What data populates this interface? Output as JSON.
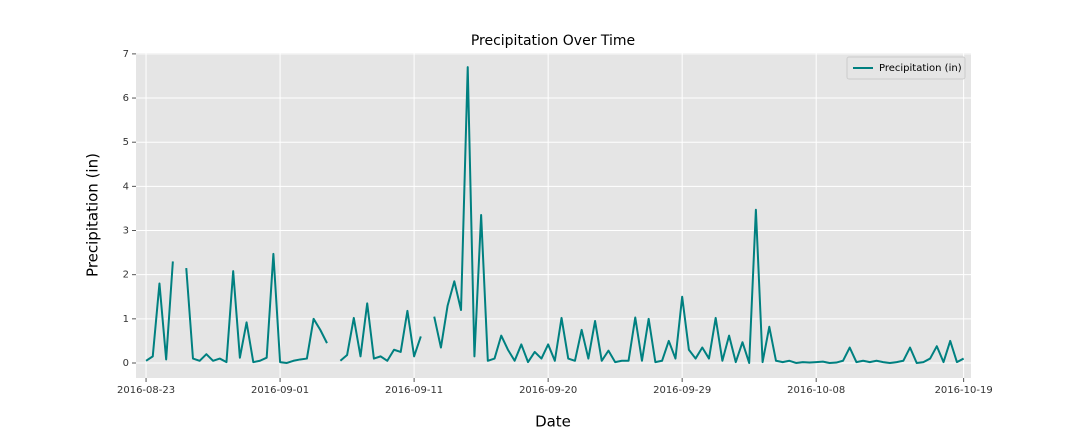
{
  "chart_data": {
    "type": "line",
    "title": "Precipitation Over Time",
    "xlabel": "Date",
    "ylabel": "Precipitation (in)",
    "series": [
      {
        "name": "Precipitation (in)",
        "color": "#008080",
        "values": [
          0.05,
          0.15,
          1.8,
          0.08,
          2.3,
          null,
          2.15,
          0.1,
          0.05,
          0.2,
          0.05,
          0.1,
          0.02,
          2.08,
          0.12,
          0.92,
          0.02,
          0.05,
          0.12,
          2.47,
          0.02,
          0.0,
          0.05,
          0.08,
          0.1,
          1.0,
          0.75,
          0.45,
          null,
          0.05,
          0.18,
          1.02,
          0.15,
          1.35,
          0.1,
          0.15,
          0.05,
          0.3,
          0.25,
          1.18,
          0.15,
          0.6,
          null,
          1.05,
          0.35,
          1.3,
          1.85,
          1.2,
          6.7,
          0.15,
          3.35,
          0.05,
          0.1,
          0.62,
          0.3,
          0.05,
          0.42,
          0.02,
          0.25,
          0.1,
          0.42,
          0.05,
          1.02,
          0.1,
          0.05,
          0.75,
          0.1,
          0.95,
          0.05,
          0.28,
          0.02,
          0.05,
          0.05,
          1.03,
          0.05,
          1.0,
          0.02,
          0.05,
          0.5,
          0.1,
          1.5,
          0.3,
          0.1,
          0.35,
          0.1,
          1.02,
          0.05,
          0.62,
          0.02,
          0.47,
          0.0,
          3.47,
          0.02,
          0.82,
          0.05,
          0.02,
          0.05,
          0.0,
          0.02,
          0.01,
          0.02,
          0.03,
          0.0,
          0.01,
          0.05,
          0.35,
          0.02,
          0.05,
          0.02,
          0.05,
          0.02,
          0.0,
          0.02,
          0.05,
          0.35,
          0.0,
          0.02,
          0.1,
          0.38,
          0.02,
          0.5,
          0.02,
          0.1
        ]
      }
    ],
    "xlim": [
      -1.5,
      123.1
    ],
    "xticks": [
      {
        "value": 0,
        "label": "2016-08-23"
      },
      {
        "value": 20,
        "label": "2016-09-01"
      },
      {
        "value": 40,
        "label": "2016-09-11"
      },
      {
        "value": 60,
        "label": "2016-09-20"
      },
      {
        "value": 80,
        "label": "2016-09-29"
      },
      {
        "value": 100,
        "label": "2016-10-08"
      },
      {
        "value": 122,
        "label": "2016-10-19"
      }
    ],
    "ylim": [
      -0.34,
      7.02
    ],
    "yticks": [
      0,
      1,
      2,
      3,
      4,
      5,
      6,
      7
    ],
    "grid": true,
    "legend": "upper right"
  }
}
